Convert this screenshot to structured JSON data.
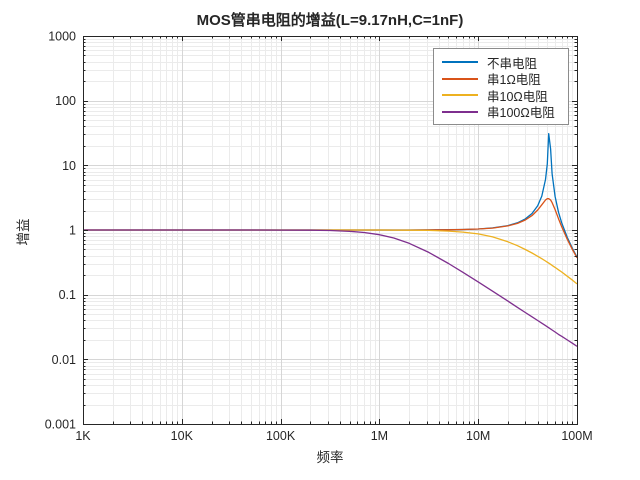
{
  "chart_data": {
    "type": "line",
    "title": "MOS管串电阻的增益(L=9.17nH,C=1nF)",
    "xlabel": "频率",
    "ylabel": "增益",
    "x_scale": "log",
    "y_scale": "log",
    "xlim": [
      1000,
      100000000
    ],
    "ylim": [
      0.001,
      1000
    ],
    "grid": "major+minor",
    "legend_position": "top-right",
    "axis_color": "#262626",
    "grid_major_color": "#d6d6d6",
    "grid_minor_color": "#ebebeb",
    "x_ticks": {
      "values": [
        1000,
        10000,
        100000,
        1000000,
        10000000,
        100000000
      ],
      "labels": [
        "1K",
        "10K",
        "100K",
        "1M",
        "10M",
        "100M"
      ]
    },
    "y_ticks": {
      "values": [
        1000,
        100,
        10,
        1,
        0.1,
        0.01,
        0.001
      ],
      "labels": [
        "1000",
        "100",
        "10",
        "1",
        "0.1",
        "0.01",
        "0.001"
      ]
    },
    "series": [
      {
        "name": "不串电阻",
        "color": "#0072BD",
        "points": [
          [
            1000.0,
            1
          ],
          [
            2000.0,
            1
          ],
          [
            4000.0,
            1
          ],
          [
            10000.0,
            1
          ],
          [
            20000.0,
            1
          ],
          [
            40000.0,
            1
          ],
          [
            100000.0,
            1
          ],
          [
            200000.0,
            1
          ],
          [
            316000.0,
            1
          ],
          [
            500000.0,
            1.0001
          ],
          [
            700000.0,
            1.0002
          ],
          [
            1000000.0,
            1.0004
          ],
          [
            1400000.0,
            1.0007
          ],
          [
            2000000.0,
            1.0015
          ],
          [
            3160000.0,
            1.0036
          ],
          [
            5000000.0,
            1.0091
          ],
          [
            7000000.0,
            1.0181
          ],
          [
            10000000.0,
            1.0376
          ],
          [
            14000000.0,
            1.0764
          ],
          [
            20000000.0,
            1.1693
          ],
          [
            25000000.0,
            1.2925
          ],
          [
            30000000.0,
            1.4833
          ],
          [
            35000000.0,
            1.7969
          ],
          [
            40000000.0,
            2.3768
          ],
          [
            44000000.0,
            3.3435
          ],
          [
            48000000.0,
            6.0294
          ],
          [
            50000000.0,
            10.54
          ],
          [
            51700000.0,
            30.9
          ],
          [
            54000000.0,
            17.95
          ],
          [
            56000000.0,
            7.388
          ],
          [
            60000000.0,
            3.297
          ],
          [
            65000000.0,
            1.888
          ],
          [
            70000000.0,
            1.292
          ],
          [
            80000000.0,
            0.7593
          ],
          [
            90000000.0,
            0.5175
          ],
          [
            100000000.0,
            0.3816
          ]
        ]
      },
      {
        "name": "串1Ω电阻",
        "color": "#D95319",
        "points": [
          [
            1000.0,
            1
          ],
          [
            4000.0,
            1
          ],
          [
            10000.0,
            1
          ],
          [
            40000.0,
            1
          ],
          [
            100000.0,
            1
          ],
          [
            200000.0,
            1
          ],
          [
            316000.0,
            1
          ],
          [
            500000.0,
            1.0001
          ],
          [
            1000000.0,
            1.0003
          ],
          [
            2000000.0,
            1.0014
          ],
          [
            3160000.0,
            1.0034
          ],
          [
            5000000.0,
            1.0086
          ],
          [
            7000000.0,
            1.017
          ],
          [
            10000000.0,
            1.0354
          ],
          [
            14000000.0,
            1.0716
          ],
          [
            20000000.0,
            1.1569
          ],
          [
            25000000.0,
            1.2666
          ],
          [
            30000000.0,
            1.4285
          ],
          [
            35000000.0,
            1.6712
          ],
          [
            40000000.0,
            2.0404
          ],
          [
            44000000.0,
            2.4552
          ],
          [
            48000000.0,
            2.9053
          ],
          [
            50000000.0,
            3.047
          ],
          [
            51700000.0,
            3.0632
          ],
          [
            54000000.0,
            2.9083
          ],
          [
            56000000.0,
            2.6525
          ],
          [
            60000000.0,
            2.0666
          ],
          [
            65000000.0,
            1.4952
          ],
          [
            70000000.0,
            1.1233
          ],
          [
            80000000.0,
            0.7094
          ],
          [
            90000000.0,
            0.4966
          ],
          [
            100000000.0,
            0.3711
          ]
        ]
      },
      {
        "name": "串10Ω电阻",
        "color": "#EDB120",
        "points": [
          [
            1000.0,
            1
          ],
          [
            4000.0,
            1
          ],
          [
            10000.0,
            1
          ],
          [
            40000.0,
            1
          ],
          [
            100000.0,
            1
          ],
          [
            200000.0,
            0.9999
          ],
          [
            316000.0,
            0.9998
          ],
          [
            500000.0,
            0.9996
          ],
          [
            700000.0,
            0.9992
          ],
          [
            1000000.0,
            0.9984
          ],
          [
            1400000.0,
            0.9969
          ],
          [
            2000000.0,
            0.9936
          ],
          [
            3160000.0,
            0.9843
          ],
          [
            5000000.0,
            0.9619
          ],
          [
            7000000.0,
            0.9292
          ],
          [
            10000000.0,
            0.8691
          ],
          [
            14000000.0,
            0.7816
          ],
          [
            20000000.0,
            0.6579
          ],
          [
            25000000.0,
            0.5711
          ],
          [
            30000000.0,
            0.4995
          ],
          [
            35000000.0,
            0.4408
          ],
          [
            40000000.0,
            0.3924
          ],
          [
            44000000.0,
            0.3596
          ],
          [
            48000000.0,
            0.3311
          ],
          [
            50000000.0,
            0.3182
          ],
          [
            51700000.0,
            0.3078
          ],
          [
            54000000.0,
            0.2947
          ],
          [
            56000000.0,
            0.284
          ],
          [
            60000000.0,
            0.2644
          ],
          [
            65000000.0,
            0.2428
          ],
          [
            70000000.0,
            0.2239
          ],
          [
            80000000.0,
            0.1924
          ],
          [
            90000000.0,
            0.1673
          ],
          [
            100000000.0,
            0.1469
          ]
        ]
      },
      {
        "name": "串100Ω电阻",
        "color": "#7E2F8E",
        "points": [
          [
            1000.0,
            1
          ],
          [
            4000.0,
            1
          ],
          [
            10000.0,
            0.9999
          ],
          [
            20000.0,
            0.9999
          ],
          [
            40000.0,
            0.9997
          ],
          [
            100000.0,
            0.998
          ],
          [
            200000.0,
            0.9922
          ],
          [
            316000.0,
            0.9809
          ],
          [
            500000.0,
            0.9541
          ],
          [
            700000.0,
            0.9155
          ],
          [
            1000000.0,
            0.8469
          ],
          [
            1400000.0,
            0.7511
          ],
          [
            2000000.0,
            0.623
          ],
          [
            3160000.0,
            0.4501
          ],
          [
            5000000.0,
            0.3036
          ],
          [
            7000000.0,
            0.2219
          ],
          [
            10000000.0,
            0.1573
          ],
          [
            14000000.0,
            0.113
          ],
          [
            20000000.0,
            0.0794
          ],
          [
            25000000.0,
            0.0636
          ],
          [
            30000000.0,
            0.053
          ],
          [
            35000000.0,
            0.0455
          ],
          [
            40000000.0,
            0.0398
          ],
          [
            44000000.0,
            0.0362
          ],
          [
            48000000.0,
            0.0332
          ],
          [
            50000000.0,
            0.0318
          ],
          [
            51700000.0,
            0.0308
          ],
          [
            54000000.0,
            0.0295
          ],
          [
            56000000.0,
            0.0284
          ],
          [
            60000000.0,
            0.0265
          ],
          [
            65000000.0,
            0.0243
          ],
          [
            70000000.0,
            0.0227
          ],
          [
            80000000.0,
            0.0199
          ],
          [
            90000000.0,
            0.0177
          ],
          [
            100000000.0,
            0.0159
          ]
        ]
      }
    ]
  }
}
